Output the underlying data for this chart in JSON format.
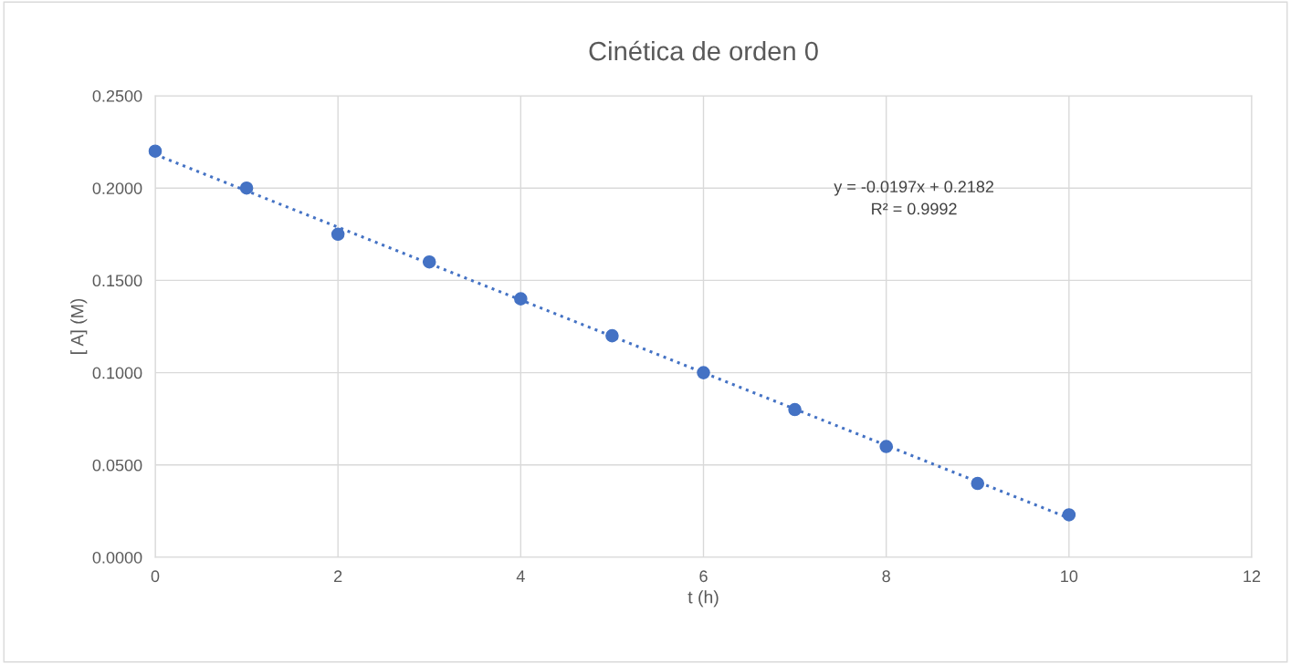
{
  "chart_data": {
    "type": "scatter",
    "title": "Cinética de orden 0",
    "xlabel": "t (h)",
    "ylabel": "[ A] (M)",
    "series": [
      {
        "color": "#4472c4",
        "marker": "circle",
        "x": [
          0,
          1,
          2,
          3,
          4,
          5,
          6,
          7,
          8,
          9,
          10
        ],
        "values": [
          0.22,
          0.2,
          0.175,
          0.16,
          0.14,
          0.12,
          0.1,
          0.08,
          0.06,
          0.04,
          0.023
        ]
      },
      {
        "type": "line",
        "color": "#4472c4",
        "line_style": "dotted",
        "marker": "none",
        "x": [
          0,
          10
        ],
        "values": [
          0.2182,
          0.0212
        ]
      }
    ],
    "annotations": [
      "y = -0.0197x + 0.2182",
      "R² = 0.9992"
    ],
    "xlim": [
      0,
      12
    ],
    "xticks": [
      0,
      2,
      4,
      6,
      8,
      10,
      12
    ],
    "ylim": [
      0,
      0.25
    ],
    "yticks": [
      {
        "value": 0,
        "label": "0.0000"
      },
      {
        "value": 0.05,
        "label": "0.0500"
      },
      {
        "value": 0.1,
        "label": "0.1000"
      },
      {
        "value": 0.15,
        "label": "0.1500"
      },
      {
        "value": 0.2,
        "label": "0.2000"
      },
      {
        "value": 0.25,
        "label": "0.2500"
      }
    ],
    "grid": true,
    "legend": false
  }
}
